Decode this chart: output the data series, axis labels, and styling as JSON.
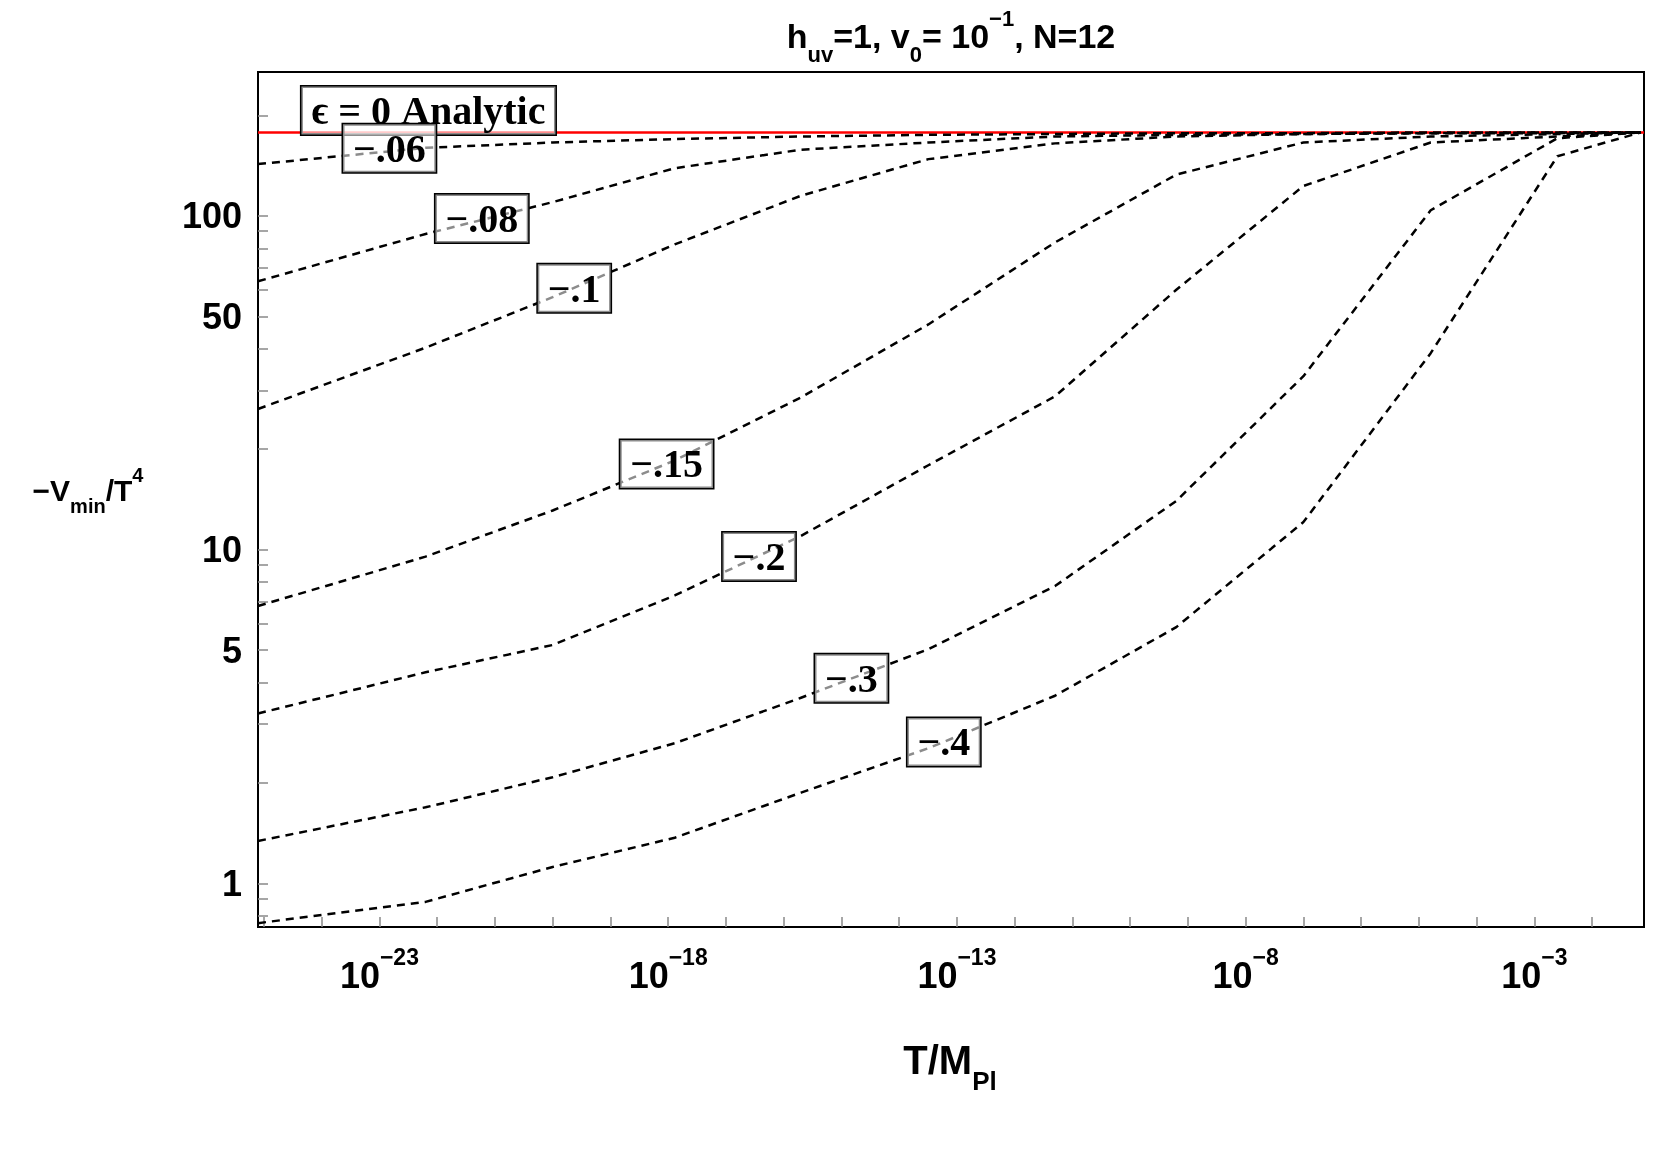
{
  "chart_data": {
    "type": "line",
    "title": "h$_{uv}$=1, v$_{0}$= 10$^{−1}$, N=12",
    "xlabel": "T/M$_{Pl}$",
    "ylabel": "−V$_{min}$/T$^{4}$",
    "log": "xy",
    "grid": false,
    "legend": false,
    "marker": "none",
    "line_style": "dashed",
    "x": [
      7.9e-26,
      6.3e-23,
      1e-20,
      1.3e-18,
      2e-16,
      3.2e-14,
      5e-12,
      6.3e-10,
      1e-07,
      1.6e-05,
      0.0025,
      0.07
    ],
    "xlim": [
      7.9e-26,
      0.079
    ],
    "ylim": [
      0.74,
      270
    ],
    "xticks": [
      {
        "value": 1e-25,
        "label": null
      },
      {
        "value": 1e-24,
        "label": null
      },
      {
        "value": 1e-23,
        "label": "10$^{−23}$"
      },
      {
        "value": 1e-22,
        "label": null
      },
      {
        "value": 1e-21,
        "label": null
      },
      {
        "value": 1e-20,
        "label": null
      },
      {
        "value": 1e-19,
        "label": null
      },
      {
        "value": 1e-18,
        "label": "10$^{−18}$"
      },
      {
        "value": 1e-17,
        "label": null
      },
      {
        "value": 1e-16,
        "label": null
      },
      {
        "value": 1e-15,
        "label": null
      },
      {
        "value": 1e-14,
        "label": null
      },
      {
        "value": 1e-13,
        "label": "10$^{−13}$"
      },
      {
        "value": 1e-12,
        "label": null
      },
      {
        "value": 1e-11,
        "label": null
      },
      {
        "value": 1e-10,
        "label": null
      },
      {
        "value": 1e-09,
        "label": null
      },
      {
        "value": 1e-08,
        "label": "10$^{−8}$"
      },
      {
        "value": 1e-07,
        "label": null
      },
      {
        "value": 1e-06,
        "label": null
      },
      {
        "value": 1e-05,
        "label": null
      },
      {
        "value": 0.0001,
        "label": null
      },
      {
        "value": 0.001,
        "label": "10$^{−3}$"
      },
      {
        "value": 0.01,
        "label": null
      }
    ],
    "yticks": [
      {
        "value": 0.8,
        "label": null
      },
      {
        "value": 0.9,
        "label": null
      },
      1,
      {
        "value": 2,
        "label": null
      },
      {
        "value": 3,
        "label": null
      },
      {
        "value": 4,
        "label": null
      },
      5,
      {
        "value": 6,
        "label": null
      },
      {
        "value": 7,
        "label": null
      },
      {
        "value": 8,
        "label": null
      },
      {
        "value": 9,
        "label": null
      },
      10,
      {
        "value": 20,
        "label": null
      },
      {
        "value": 30,
        "label": null
      },
      {
        "value": 40,
        "label": null
      },
      50,
      {
        "value": 60,
        "label": null
      },
      {
        "value": 70,
        "label": null
      },
      {
        "value": 80,
        "label": null
      },
      {
        "value": 90,
        "label": null
      },
      100,
      {
        "value": 200,
        "label": null
      }
    ],
    "series": [
      {
        "name": "ϵ = 0 Analytic",
        "color": "#ff0000",
        "line_style": "solid",
        "x": [
          7.9e-26,
          0.079
        ],
        "values": [
          178,
          178
        ]
      },
      {
        "name": "−.06",
        "color": "#000000",
        "values": [
          143,
          160,
          166,
          170,
          173,
          175,
          176,
          177,
          177,
          178,
          178,
          178
        ]
      },
      {
        "name": "−.08",
        "color": "#000000",
        "values": [
          63.7,
          88.3,
          110,
          139,
          158,
          166,
          173,
          175,
          176,
          177,
          177,
          178
        ]
      },
      {
        "name": "−.1",
        "color": "#000000",
        "values": [
          26.4,
          40.3,
          57.1,
          82.2,
          115,
          148,
          165,
          173,
          176,
          177,
          178,
          178
        ]
      },
      {
        "name": "−.15",
        "color": "#000000",
        "values": [
          6.78,
          9.53,
          13.1,
          18.5,
          28.6,
          47.3,
          83.3,
          133,
          166,
          173,
          176,
          178
        ]
      },
      {
        "name": "−.2",
        "color": "#000000",
        "values": [
          3.23,
          4.29,
          5.18,
          7.29,
          11.0,
          17.9,
          28.8,
          60.1,
          123,
          166,
          173,
          178
        ]
      },
      {
        "name": "−.3",
        "color": "#000000",
        "values": [
          1.34,
          1.69,
          2.08,
          2.63,
          3.6,
          5.03,
          7.78,
          14.0,
          33.1,
          104,
          171,
          178
        ]
      },
      {
        "name": "−.4",
        "color": "#000000",
        "values": [
          0.76,
          0.88,
          1.12,
          1.37,
          1.87,
          2.54,
          3.65,
          5.86,
          12.1,
          38.8,
          151,
          178
        ]
      }
    ]
  }
}
